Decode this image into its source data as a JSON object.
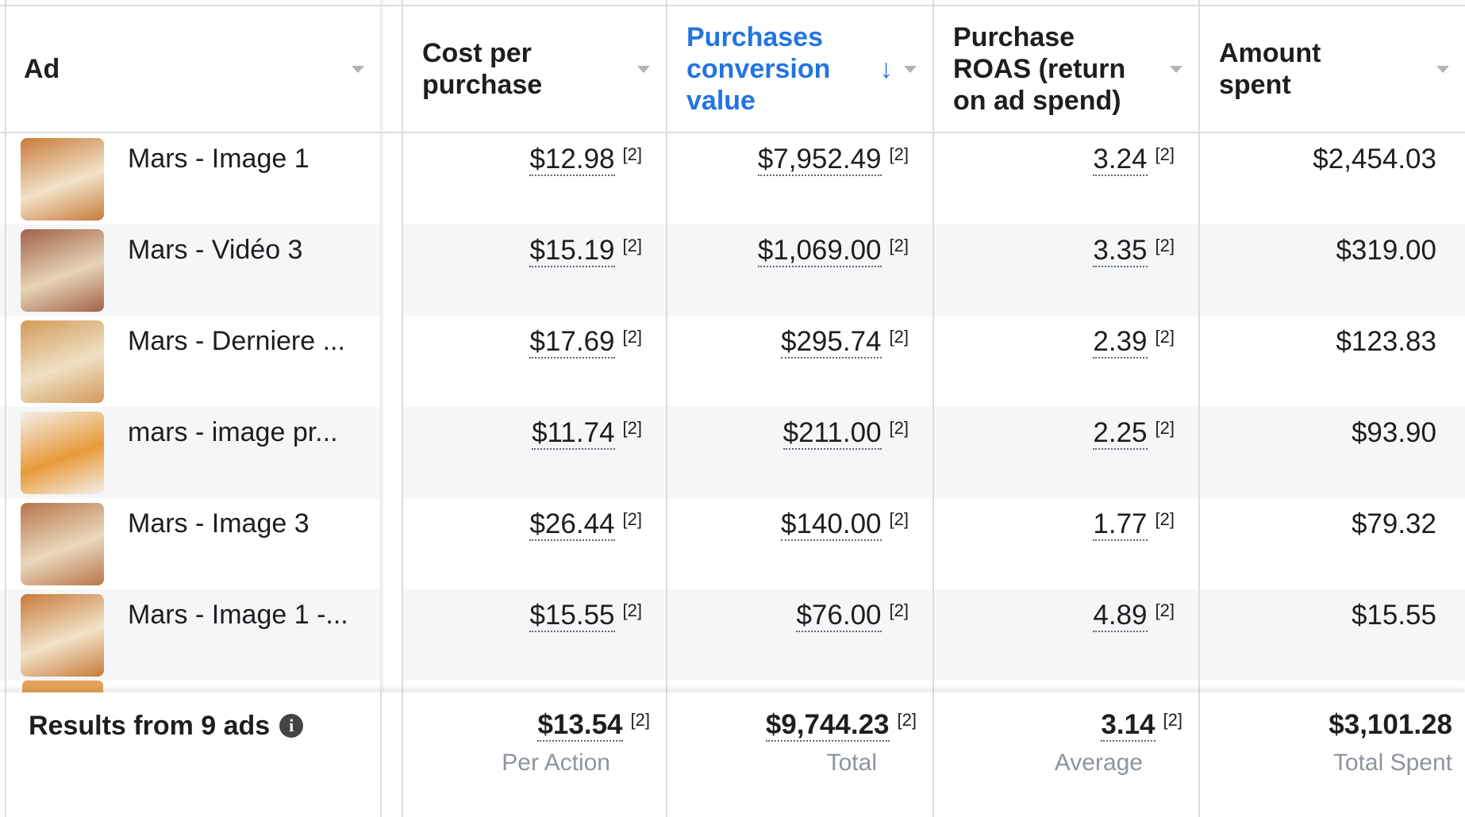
{
  "header": {
    "columns": [
      "Ad",
      "Cost per purchase",
      "Purchases conversion value",
      "Purchase ROAS (return on ad spend)",
      "Amount spent"
    ],
    "sorted_column": 2
  },
  "footnote": "[2]",
  "rows": [
    [
      "Mars - Image 1",
      "$12.98",
      "$7,952.49",
      "3.24",
      "$2,454.03"
    ],
    [
      "Mars - Vidéo 3",
      "$15.19",
      "$1,069.00",
      "3.35",
      "$319.00"
    ],
    [
      "Mars - Derniere ...",
      "$17.69",
      "$295.74",
      "2.39",
      "$123.83"
    ],
    [
      "mars - image pr...",
      "$11.74",
      "$211.00",
      "2.25",
      "$93.90"
    ],
    [
      "Mars - Image 3",
      "$26.44",
      "$140.00",
      "1.77",
      "$79.32"
    ],
    [
      "Mars - Image 1 -...",
      "$15.55",
      "$76.00",
      "4.89",
      "$15.55"
    ]
  ],
  "footer": {
    "label": "Results from 9 ads",
    "cells": [
      [
        "$13.54",
        "Per Action"
      ],
      [
        "$9,744.23",
        "Total"
      ],
      [
        "3.14",
        "Average"
      ],
      [
        "$3,101.28",
        "Total Spent"
      ]
    ]
  }
}
